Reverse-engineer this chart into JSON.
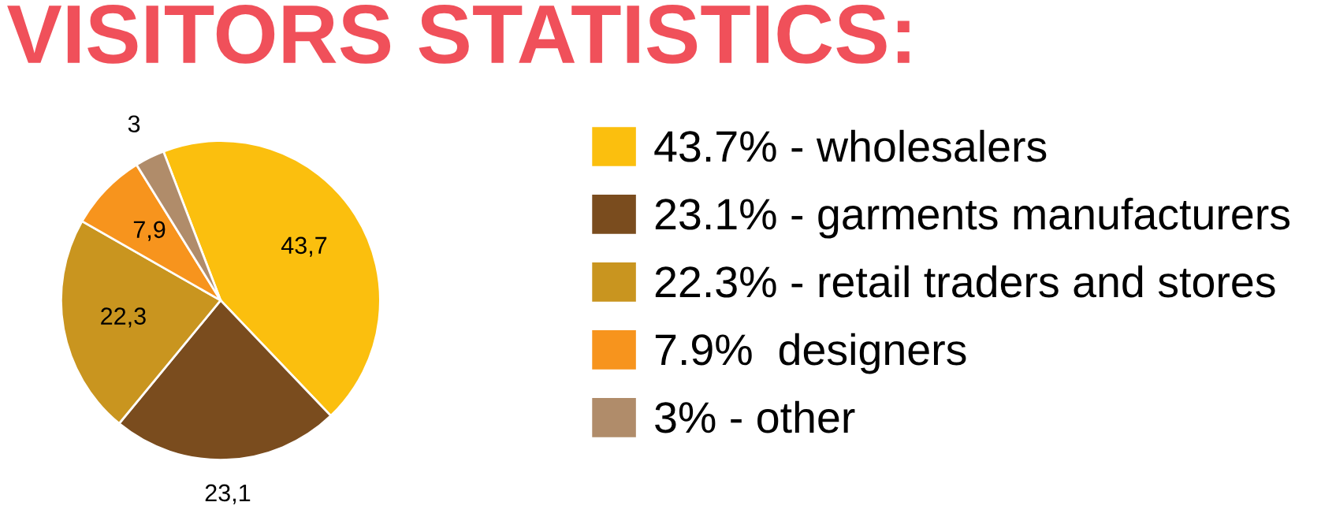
{
  "chart_data": {
    "type": "pie",
    "title": "VISITORS STATISTICS:",
    "categories": [
      "43.7% - wholesalers",
      "23.1% - garments manufacturers",
      "22.3% - retail traders and stores",
      "7.9%  designers",
      "3% - other"
    ],
    "values": [
      43.7,
      23.1,
      22.3,
      7.9,
      3
    ],
    "colors": [
      "#fbbf0e",
      "#7a4c1e",
      "#c9951f",
      "#f7941d",
      "#b08c6a"
    ],
    "value_labels": [
      "43,7",
      "23,1",
      "22,3",
      "7,9",
      "3"
    ],
    "legend": "right"
  }
}
